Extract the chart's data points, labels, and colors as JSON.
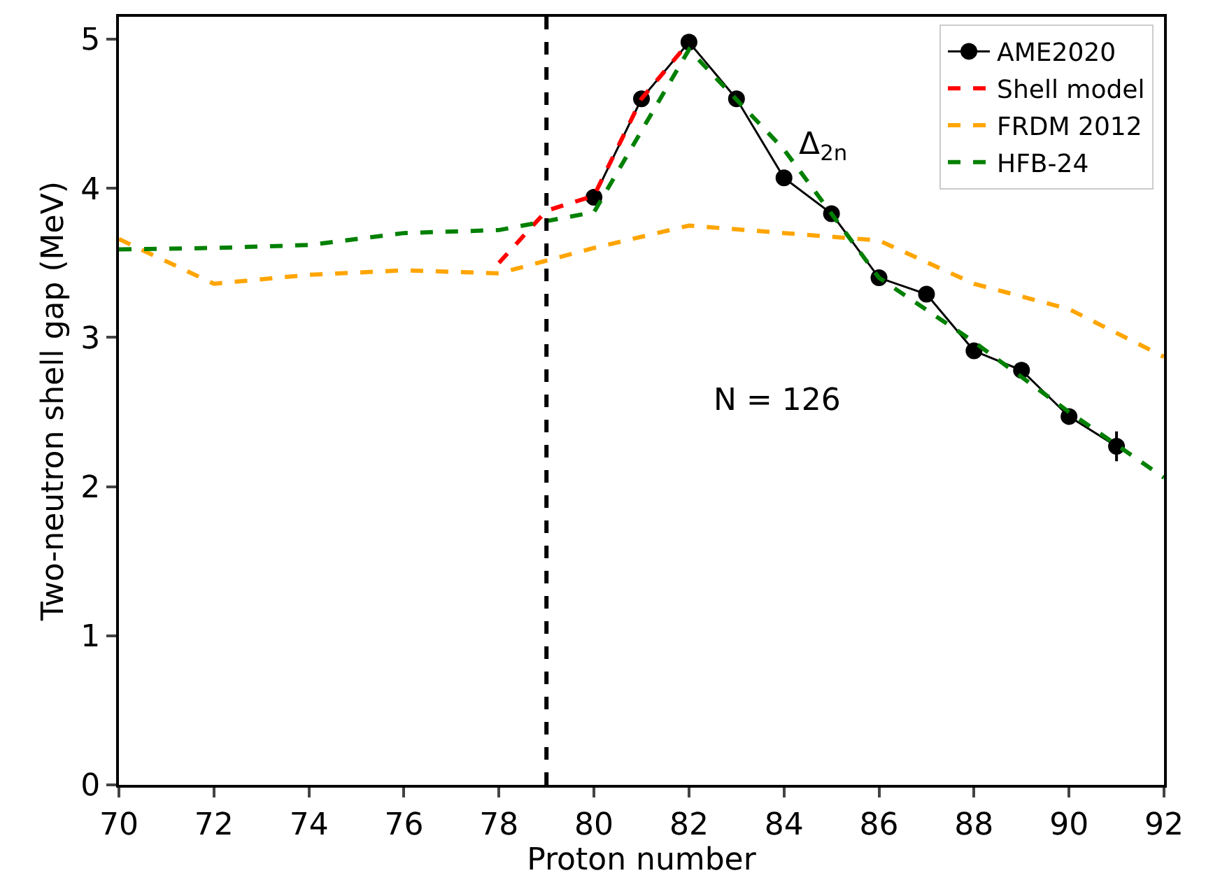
{
  "chart_data": {
    "type": "line",
    "xlabel": "Proton number",
    "ylabel": "Two-neutron shell gap (MeV)",
    "xlim": [
      70,
      92
    ],
    "xticks": [
      70,
      72,
      74,
      76,
      78,
      80,
      82,
      84,
      86,
      88,
      90,
      92
    ],
    "ylim": [
      0,
      5.15
    ],
    "yticks": [
      0,
      1,
      2,
      3,
      4,
      5
    ],
    "legend": "top right",
    "series": [
      {
        "name": "AME2020",
        "color": "#000000",
        "marker": "circle",
        "line_style": "solid",
        "x": [
          80,
          81,
          82,
          83,
          84,
          85,
          86,
          87,
          88,
          89,
          90,
          91
        ],
        "values": [
          3.94,
          4.6,
          4.98,
          4.6,
          4.07,
          3.83,
          3.4,
          3.29,
          2.91,
          2.78,
          2.47,
          2.27
        ],
        "errors": [
          null,
          null,
          null,
          null,
          null,
          null,
          null,
          null,
          null,
          null,
          null,
          0.1
        ]
      },
      {
        "name": "Shell model",
        "color": "#ff0000",
        "marker": "none",
        "line_style": "dashed",
        "x": [
          78,
          79,
          80,
          81,
          82
        ],
        "values": [
          3.5,
          3.85,
          3.95,
          4.6,
          4.98
        ]
      },
      {
        "name": "FRDM 2012",
        "color": "#ffa500",
        "marker": "none",
        "line_style": "dashed",
        "x": [
          70,
          72,
          74,
          76,
          78,
          80,
          82,
          84,
          86,
          88,
          90,
          92
        ],
        "values": [
          3.66,
          3.36,
          3.42,
          3.45,
          3.43,
          3.6,
          3.75,
          3.7,
          3.65,
          3.36,
          3.19,
          2.87
        ]
      },
      {
        "name": "HFB-24",
        "color": "#008000",
        "marker": "none",
        "line_style": "dashed",
        "x": [
          70,
          72,
          74,
          76,
          78,
          80,
          82,
          84,
          86,
          88,
          90,
          92
        ],
        "values": [
          3.59,
          3.6,
          3.62,
          3.7,
          3.72,
          3.84,
          4.93,
          4.26,
          3.4,
          2.97,
          2.5,
          2.06
        ]
      }
    ],
    "ref_lines": [
      {
        "axis": "x",
        "value": 79,
        "color": "#000000",
        "line_style": "dashed"
      }
    ],
    "annotations": [
      "Δ$_{2n}$",
      "N = 126"
    ]
  }
}
